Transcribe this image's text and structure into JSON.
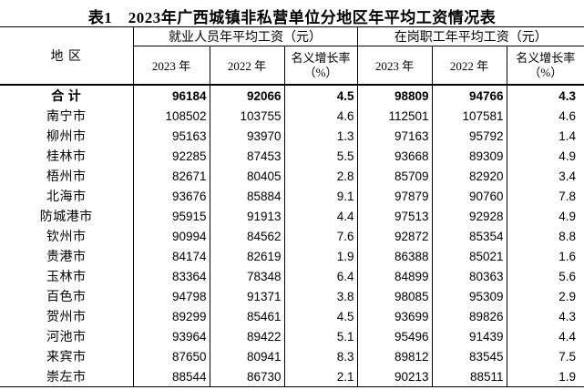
{
  "page": {
    "background": "#ffffff",
    "text_color": "#000000",
    "border_color": "#000000"
  },
  "title": "表1　2023年广西城镇非私营单位分地区年平均工资情况表",
  "table": {
    "region_header": "地 区",
    "group1_header": "就业人员年平均工资（元）",
    "group2_header": "在岗职工年平均工资（元）",
    "sub_headers": {
      "y2023": "2023 年",
      "y2022": "2022 年",
      "rate_line1": "名义增长率",
      "rate_line2": "（%）"
    },
    "rows": [
      {
        "region": "合 计",
        "values": [
          "96184",
          "92066",
          "4.5",
          "98809",
          "94766",
          "4.3"
        ],
        "bold": true
      },
      {
        "region": "南宁市",
        "values": [
          "108502",
          "103755",
          "4.6",
          "112501",
          "107581",
          "4.6"
        ],
        "bold": false
      },
      {
        "region": "柳州市",
        "values": [
          "95163",
          "93970",
          "1.3",
          "97163",
          "95792",
          "1.4"
        ],
        "bold": false
      },
      {
        "region": "桂林市",
        "values": [
          "92285",
          "87453",
          "5.5",
          "93668",
          "89309",
          "4.9"
        ],
        "bold": false
      },
      {
        "region": "梧州市",
        "values": [
          "82671",
          "80405",
          "2.8",
          "85709",
          "82920",
          "3.4"
        ],
        "bold": false
      },
      {
        "region": "北海市",
        "values": [
          "93676",
          "85884",
          "9.1",
          "97879",
          "90760",
          "7.8"
        ],
        "bold": false
      },
      {
        "region": "防城港市",
        "values": [
          "95915",
          "91913",
          "4.4",
          "97513",
          "92928",
          "4.9"
        ],
        "bold": false
      },
      {
        "region": "钦州市",
        "values": [
          "90994",
          "84562",
          "7.6",
          "92872",
          "85354",
          "8.8"
        ],
        "bold": false
      },
      {
        "region": "贵港市",
        "values": [
          "84174",
          "82619",
          "1.9",
          "86388",
          "85021",
          "1.6"
        ],
        "bold": false
      },
      {
        "region": "玉林市",
        "values": [
          "83364",
          "78348",
          "6.4",
          "84899",
          "80363",
          "5.6"
        ],
        "bold": false
      },
      {
        "region": "百色市",
        "values": [
          "94798",
          "91371",
          "3.8",
          "98085",
          "95309",
          "2.9"
        ],
        "bold": false
      },
      {
        "region": "贺州市",
        "values": [
          "89299",
          "85461",
          "4.5",
          "93699",
          "89826",
          "4.3"
        ],
        "bold": false
      },
      {
        "region": "河池市",
        "values": [
          "93964",
          "89422",
          "5.1",
          "95496",
          "91439",
          "4.4"
        ],
        "bold": false
      },
      {
        "region": "来宾市",
        "values": [
          "87650",
          "80941",
          "8.3",
          "89812",
          "83545",
          "7.5"
        ],
        "bold": false
      },
      {
        "region": "崇左市",
        "values": [
          "88544",
          "86730",
          "2.1",
          "90213",
          "88511",
          "1.9"
        ],
        "bold": false
      }
    ]
  }
}
